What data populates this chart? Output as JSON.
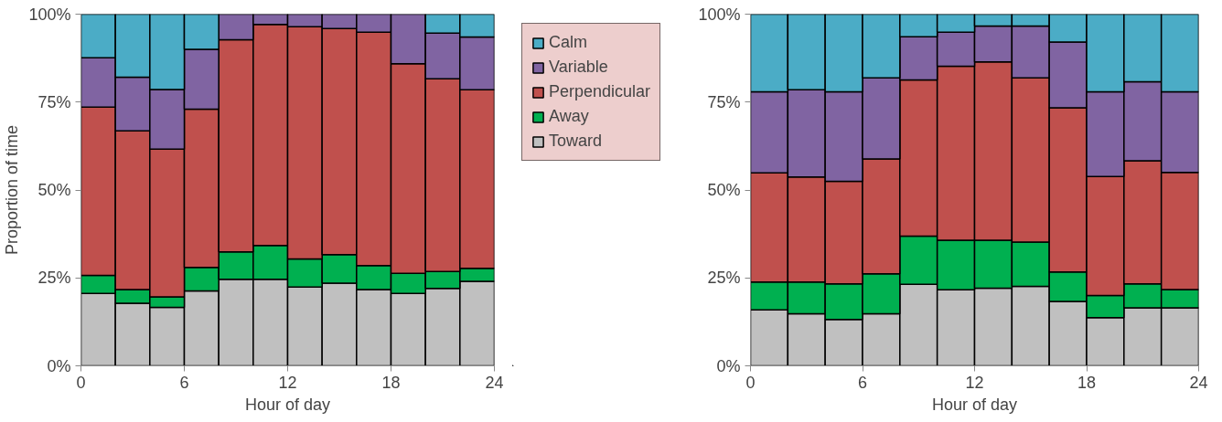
{
  "chart_data": [
    {
      "type": "bar",
      "stacked": true,
      "xlabel": "Hour of day",
      "ylabel": "Proportion of time",
      "x": [
        1,
        3,
        5,
        7,
        9,
        11,
        13,
        15,
        17,
        19,
        21,
        23
      ],
      "xlim": [
        0,
        24
      ],
      "xticks": [
        0,
        6,
        12,
        18,
        24
      ],
      "ylim": [
        0,
        100
      ],
      "yticks": [
        {
          "value": 0,
          "label": "0%"
        },
        {
          "value": 25,
          "label": "25%"
        },
        {
          "value": 50,
          "label": "50%"
        },
        {
          "value": 75,
          "label": "75%"
        },
        {
          "value": 100,
          "label": "100%"
        }
      ],
      "legend": "right",
      "series": [
        {
          "name": "Toward",
          "color": "#c0c0c0",
          "values": [
            20.6,
            17.8,
            16.6,
            21.3,
            24.6,
            24.6,
            22.4,
            23.5,
            21.7,
            20.6,
            22,
            24
          ]
        },
        {
          "name": "Away",
          "color": "#00b050",
          "values": [
            5.1,
            3.9,
            3.0,
            6.7,
            7.8,
            9.6,
            8.0,
            8.1,
            6.8,
            5.7,
            4.8,
            3.7
          ]
        },
        {
          "name": "Perpendicular",
          "color": "#c0504d",
          "values": [
            47.9,
            45.1,
            42.0,
            45.0,
            60.3,
            62.9,
            66.0,
            64.3,
            66.4,
            59.6,
            54.8,
            50.8
          ]
        },
        {
          "name": "Variable",
          "color": "#8064a2",
          "values": [
            14.0,
            15.3,
            17.0,
            17.0,
            7.3,
            2.9,
            3.6,
            4.1,
            5.1,
            14.1,
            13.0,
            15.0
          ]
        },
        {
          "name": "Calm",
          "color": "#4bacc6",
          "values": [
            12.4,
            17.9,
            21.4,
            10.0,
            0,
            0,
            0,
            0,
            0,
            0,
            5.4,
            6.5
          ]
        }
      ]
    },
    {
      "type": "bar",
      "stacked": true,
      "xlabel": "Hour of day",
      "x": [
        1,
        3,
        5,
        7,
        9,
        11,
        13,
        15,
        17,
        19,
        21,
        23
      ],
      "xlim": [
        0,
        24
      ],
      "xticks": [
        0,
        6,
        12,
        18,
        24
      ],
      "ylim": [
        0,
        100
      ],
      "yticks": [
        {
          "value": 0,
          "label": "0%"
        },
        {
          "value": 25,
          "label": "25%"
        },
        {
          "value": 50,
          "label": "50%"
        },
        {
          "value": 75,
          "label": "75%"
        },
        {
          "value": 100,
          "label": "100%"
        }
      ],
      "series": [
        {
          "color": "#c0c0c0",
          "values": [
            15.9,
            14.8,
            13.2,
            14.8,
            23.2,
            21.6,
            22.1,
            22.6,
            18.3,
            13.7,
            16.5,
            16.5
          ]
        },
        {
          "color": "#00b050",
          "values": [
            7.9,
            9.0,
            10.1,
            11.4,
            13.7,
            14.1,
            13.6,
            12.6,
            8.4,
            6.3,
            6.8,
            5.2
          ]
        },
        {
          "color": "#c0504d",
          "values": [
            31.1,
            29.9,
            29.2,
            32.6,
            44.4,
            49.5,
            50.7,
            46.7,
            46.7,
            33.8,
            35.0,
            33.3
          ]
        },
        {
          "color": "#8064a2",
          "values": [
            23.0,
            24.8,
            25.4,
            23.1,
            12.3,
            9.7,
            10.2,
            14.7,
            18.7,
            24.1,
            22.5,
            22.9
          ]
        },
        {
          "color": "#4bacc6",
          "values": [
            22.1,
            21.5,
            22.1,
            18.1,
            6.4,
            5.1,
            3.4,
            3.4,
            7.9,
            22.1,
            19.2,
            22.1
          ]
        }
      ]
    }
  ]
}
